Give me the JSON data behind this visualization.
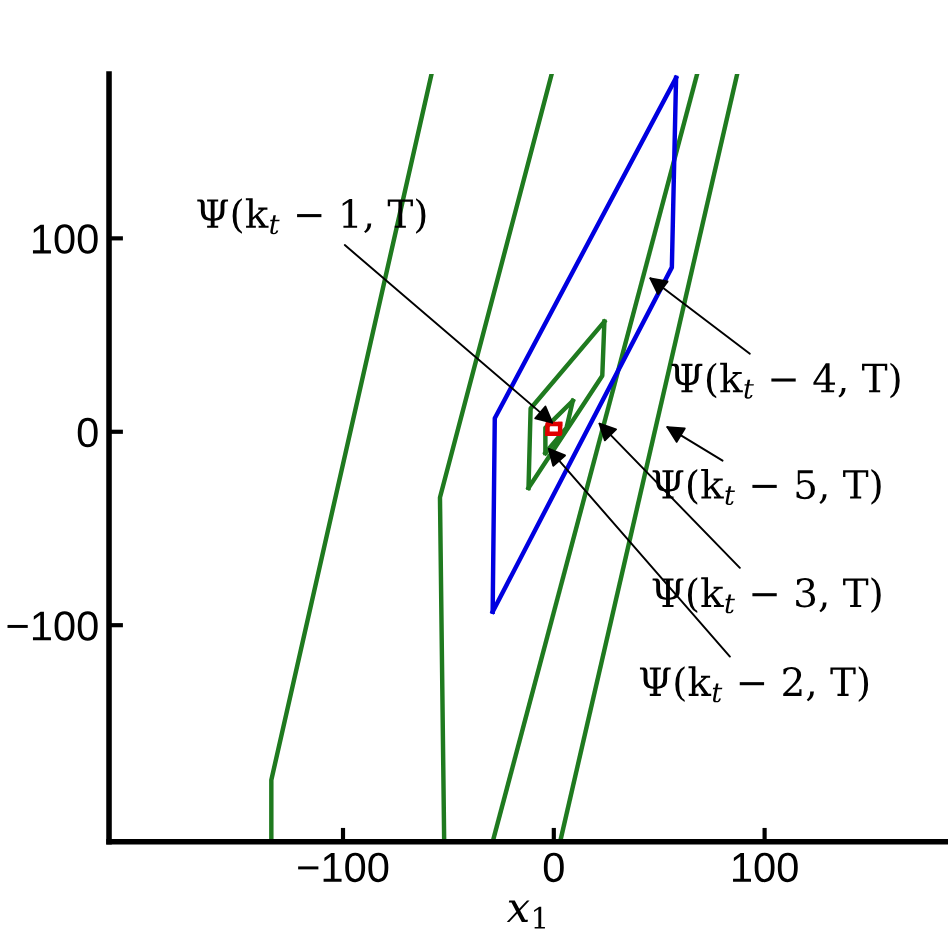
{
  "chart_data": {
    "type": "line",
    "xlabel": "x$_{1}$",
    "xlim": [
      -211,
      187
    ],
    "ylim": [
      -212,
      185
    ],
    "xticks": [
      {
        "value": -100,
        "label": "−100"
      },
      0,
      100
    ],
    "yticks": [
      {
        "value": -100,
        "label": "−100"
      },
      0,
      100
    ],
    "grid": false,
    "legend": false,
    "marker": "none",
    "line_style": "solid",
    "series": [
      {
        "color": "#1f7a1f",
        "x": [
          -58,
          -134,
          -134
        ],
        "values": [
          185,
          -180,
          -212
        ]
      },
      {
        "color": "#1f7a1f",
        "x": [
          -1,
          -54,
          -52
        ],
        "values": [
          185,
          -34,
          -212
        ]
      },
      {
        "color": "#1f7a1f",
        "x": [
          -29,
          68
        ],
        "values": [
          -212,
          185
        ]
      },
      {
        "color": "#1f7a1f",
        "x": [
          3,
          87
        ],
        "values": [
          -212,
          185
        ]
      },
      {
        "color": "#0000e0",
        "x": [
          -29,
          -28,
          58
        ],
        "values": [
          -93,
          7,
          183
        ]
      },
      {
        "color": "#0000e0",
        "x": [
          -29,
          56,
          58
        ],
        "values": [
          -93,
          85,
          183
        ]
      },
      {
        "color": "#1f7a1f",
        "x": [
          -12,
          -11,
          24
        ],
        "values": [
          -29,
          12,
          57
        ]
      },
      {
        "color": "#1f7a1f",
        "x": [
          -12,
          23,
          24
        ],
        "values": [
          -29,
          29,
          57
        ]
      },
      {
        "color": "#1f7a1f",
        "x": [
          -4,
          -4,
          9
        ],
        "values": [
          -11,
          2,
          16
        ]
      },
      {
        "color": "#1f7a1f",
        "x": [
          -4,
          6,
          9
        ],
        "values": [
          -11,
          2,
          16
        ]
      },
      {
        "color": "#e00000",
        "x": [
          -3,
          -3,
          3
        ],
        "values": [
          -1,
          4,
          4
        ]
      },
      {
        "color": "#e00000",
        "x": [
          -3,
          3,
          3
        ],
        "values": [
          -1,
          -1,
          4
        ]
      }
    ],
    "annotations": [
      {
        "text": "Ψ(k$_{t}$ − 1, T)",
        "x": 0,
        "y": 4
      },
      {
        "text": "Ψ(k$_{t}$ − 4, T)",
        "x": 45,
        "y": 80
      },
      {
        "text": "Ψ(k$_{t}$ − 5, T)",
        "x": 53,
        "y": 3
      },
      {
        "text": "Ψ(k$_{t}$ − 3, T)",
        "x": 21,
        "y": 5
      },
      {
        "text": "Ψ(k$_{t}$ − 2, T)",
        "x": -3,
        "y": -8
      }
    ]
  }
}
